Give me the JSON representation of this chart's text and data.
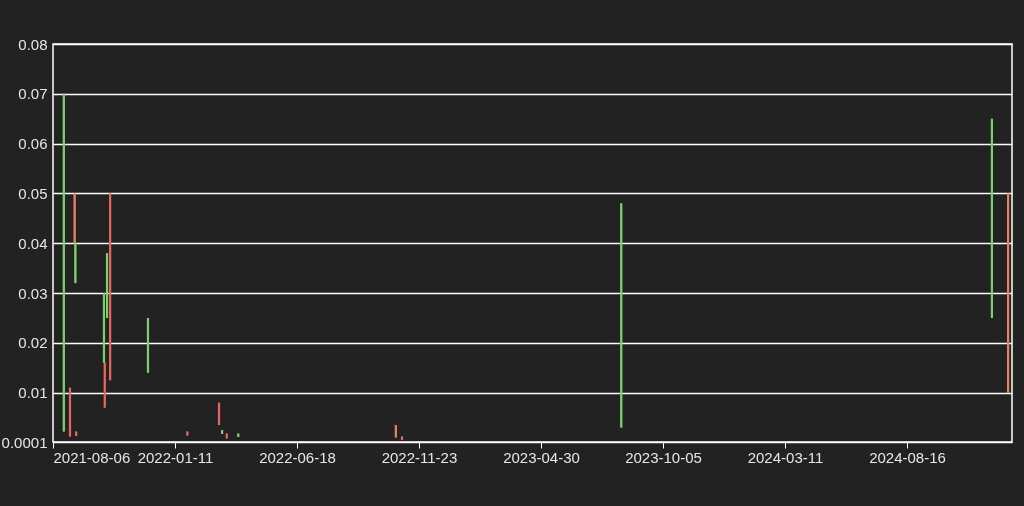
{
  "chart_data": {
    "type": "candlestick",
    "x": [
      "2021-08-20",
      "2021-08-28",
      "2021-09-03",
      "2021-09-04",
      "2021-09-05",
      "2021-10-11",
      "2021-10-12",
      "2021-10-15",
      "2021-10-19",
      "2021-12-07",
      "2022-01-27",
      "2022-03-09",
      "2022-03-13",
      "2022-03-19",
      "2022-04-03",
      "2022-10-24",
      "2022-11-01",
      "2023-08-12",
      "2024-12-04",
      "2024-12-25"
    ],
    "ohlc": [
      [
        0.0022,
        0.07,
        0.0022,
        0.07
      ],
      [
        0.011,
        0.011,
        0.0012,
        0.0012
      ],
      [
        0.05,
        0.05,
        0.04,
        0.04
      ],
      [
        0.032,
        0.04,
        0.032,
        0.04
      ],
      [
        0.0022,
        0.0022,
        0.0013,
        0.0013
      ],
      [
        0.016,
        0.03,
        0.016,
        0.03
      ],
      [
        0.016,
        0.016,
        0.007,
        0.007
      ],
      [
        0.025,
        0.038,
        0.025,
        0.038
      ],
      [
        0.05,
        0.05,
        0.0125,
        0.0125
      ],
      [
        0.014,
        0.025,
        0.014,
        0.025
      ],
      [
        0.0022,
        0.0022,
        0.0014,
        0.0014
      ],
      [
        0.008,
        0.008,
        0.0035,
        0.0035
      ],
      [
        0.0017,
        0.0025,
        0.0017,
        0.0025
      ],
      [
        0.0018,
        0.0018,
        0.0008,
        0.0008
      ],
      [
        0.0011,
        0.0018,
        0.0011,
        0.0018
      ],
      [
        0.0035,
        0.0035,
        0.001,
        0.001
      ],
      [
        0.0012,
        0.0012,
        0.0005,
        0.0005
      ],
      [
        0.003,
        0.048,
        0.003,
        0.048
      ],
      [
        0.025,
        0.065,
        0.025,
        0.065
      ],
      [
        0.05,
        0.05,
        0.01,
        0.01
      ]
    ],
    "colors": [
      "#7cd16f",
      "#e8665c",
      "#e8845c",
      "#7cd16f",
      "#e8665c",
      "#7cd16f",
      "#e8665c",
      "#7cd16f",
      "#e8665c",
      "#7cd16f",
      "#e8665c",
      "#e8665c",
      "#7cd16f",
      "#e8665c",
      "#7cd16f",
      "#e8845c",
      "#e8665c",
      "#7cd16f",
      "#7cd16f",
      "#e8845c"
    ],
    "xlim": [
      "2021-08-06",
      "2024-12-30"
    ],
    "xticks": [
      "2021-08-06",
      "2022-01-11",
      "2022-06-18",
      "2022-11-23",
      "2023-04-30",
      "2023-10-05",
      "2024-03-11",
      "2024-08-16"
    ],
    "ylim": [
      0.0001,
      0.08
    ],
    "yticks": [
      0.0001,
      0.01,
      0.02,
      0.03,
      0.04,
      0.05,
      0.06,
      0.07,
      0.08
    ],
    "grid": "y"
  }
}
